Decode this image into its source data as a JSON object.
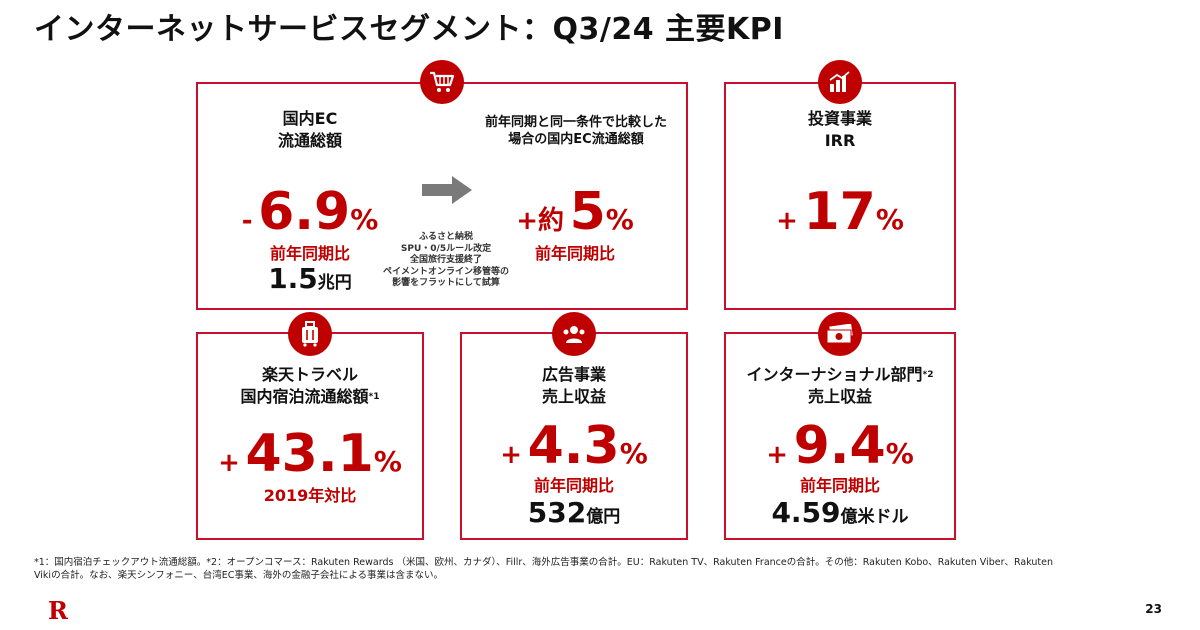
{
  "title": "インターネットサービスセグメント：Q3/24 主要KPI",
  "domestic_ec": {
    "label_line1": "国内EC",
    "label_line2": "流通総額",
    "sign": "-",
    "value": "6.9",
    "unit": "%",
    "comparison": "前年同期比",
    "amount": "1.5",
    "amount_unit": "兆円"
  },
  "same_condition": {
    "label_line1": "前年同期と同一条件で比較した",
    "label_line2": "場合の国内EC流通総額",
    "sign": "+約",
    "value": "5",
    "unit": "%",
    "comparison": "前年同期比",
    "note_lines": [
      "ふるさと納税",
      "SPU・0/5ルール改定",
      "全国旅行支援終了",
      "ペイメントオンライン移管等の",
      "影響をフラットにして試算"
    ]
  },
  "investment": {
    "label_line1": "投資事業",
    "label_line2": "IRR",
    "sign": "+",
    "value": "17",
    "unit": "%"
  },
  "travel": {
    "label_line1": "楽天トラベル",
    "label_line2": "国内宿泊流通総額",
    "footnote_mark": "*1",
    "sign": "+",
    "value": "43.1",
    "unit": "%",
    "comparison": "2019年対比"
  },
  "advertising": {
    "label_line1": "広告事業",
    "label_line2": "売上収益",
    "sign": "+",
    "value": "4.3",
    "unit": "%",
    "comparison": "前年同期比",
    "amount": "532",
    "amount_unit": "億円"
  },
  "international": {
    "label_line1": "インターナショナル部門",
    "footnote_mark": "*2",
    "label_line2": "売上収益",
    "sign": "+",
    "value": "9.4",
    "unit": "%",
    "comparison": "前年同期比",
    "amount": "4.59",
    "amount_unit": "億米ドル"
  },
  "footnote_line1": "*1：国内宿泊チェックアウト流通総額。*2：オープンコマース：Rakuten Rewards （米国、欧州、カナダ）、Fillr、海外広告事業の合計。EU：Rakuten TV、Rakuten Franceの合計。その他：Rakuten Kobo、Rakuten Viber、Rakuten",
  "footnote_line2": "Vikiの合計。なお、楽天シンフォニー、台湾EC事業、海外の金融子会社による事業は含まない。",
  "logo_letter": "R",
  "page_number": "23",
  "colors": {
    "accent": "#bf0000",
    "border": "#c8102e"
  },
  "icons": [
    "cart-icon",
    "chart-icon",
    "suitcase-icon",
    "megaphone-icon",
    "money-icon",
    "arrow-right-icon"
  ]
}
